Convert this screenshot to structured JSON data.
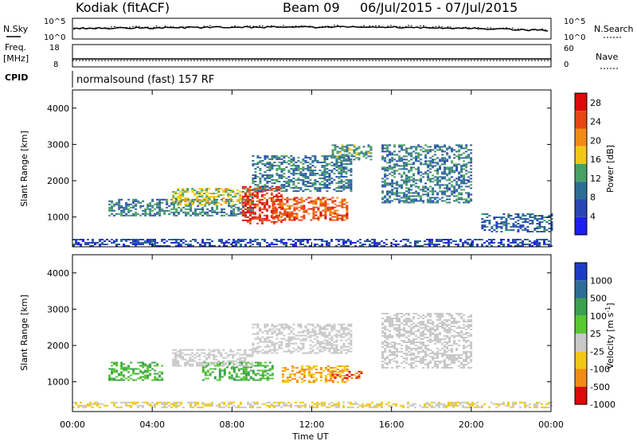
{
  "header": {
    "station": "Kodiak (fitACF)",
    "beam": "Beam 09",
    "date_range": "06/Jul/2015 - 07/Jul/2015"
  },
  "summary": {
    "left_labels": {
      "nsky": "N.Sky",
      "freq_top": "Freq.",
      "freq_unit": "[MHz]",
      "cpid": "CPID"
    },
    "right_labels": {
      "nsearch": "N.Search",
      "nave": "Nave"
    },
    "nsky_ticks": [
      "10^5",
      "10^0"
    ],
    "nsearch_ticks": [
      "10^5",
      "10^0"
    ],
    "freq_ticks": [
      "18",
      "8"
    ],
    "nave_ticks": [
      "60",
      "0"
    ],
    "cpid_text": "normalsound (fast) 157 RF"
  },
  "chart_data": [
    {
      "type": "heatmap",
      "panel": "power",
      "ylabel": "Slant Range [km]",
      "xlabel": "",
      "x_ticks": [
        "00:00",
        "04:00",
        "08:00",
        "12:00",
        "16:00",
        "20:00",
        "00:00"
      ],
      "y_ticks": [
        "1000",
        "2000",
        "3000",
        "4000"
      ],
      "x_range_hours": [
        0,
        24
      ],
      "y_range_km": [
        180,
        4500
      ],
      "colorbar": {
        "label": "Power [dB]",
        "ticks": [
          "4",
          "8",
          "12",
          "16",
          "20",
          "24",
          "28"
        ],
        "range": [
          0,
          30
        ],
        "colors": [
          "#1e1ef0",
          "#2a46b4",
          "#2e6e96",
          "#4aa064",
          "#f0c814",
          "#f08c14",
          "#e64614",
          "#dc0a0a"
        ]
      },
      "bands": [
        {
          "x": [
            1.8,
            9.0
          ],
          "y": [
            1050,
            1500
          ],
          "v": 10
        },
        {
          "x": [
            5.0,
            9.0
          ],
          "y": [
            1350,
            1800
          ],
          "v": 16
        },
        {
          "x": [
            8.5,
            10.5
          ],
          "y": [
            800,
            1850
          ],
          "v": 26
        },
        {
          "x": [
            10.0,
            13.8
          ],
          "y": [
            900,
            1550
          ],
          "v": 24
        },
        {
          "x": [
            9.0,
            14.0
          ],
          "y": [
            1700,
            2700
          ],
          "v": 10
        },
        {
          "x": [
            13.0,
            15.0
          ],
          "y": [
            2600,
            3000
          ],
          "v": 12
        },
        {
          "x": [
            15.5,
            20.0
          ],
          "y": [
            1400,
            3000
          ],
          "v": 10
        },
        {
          "x": [
            20.5,
            24.0
          ],
          "y": [
            600,
            1100
          ],
          "v": 8
        },
        {
          "x": [
            0.0,
            24.0
          ],
          "y": [
            200,
            400
          ],
          "v": 6
        }
      ]
    },
    {
      "type": "heatmap",
      "panel": "velocity",
      "ylabel": "Slant Range [km]",
      "xlabel": "Time UT",
      "x_ticks": [
        "00:00",
        "04:00",
        "08:00",
        "12:00",
        "16:00",
        "20:00",
        "00:00"
      ],
      "y_ticks": [
        "1000",
        "2000",
        "3000",
        "4000"
      ],
      "x_range_hours": [
        0,
        24
      ],
      "y_range_km": [
        180,
        4500
      ],
      "colorbar": {
        "label": "Velocity [m s^-1]",
        "ticks": [
          "1000",
          "500",
          "100",
          "25",
          "-25",
          "-100",
          "-500",
          "-1000"
        ],
        "colors": [
          "#1e3cc8",
          "#2e6e96",
          "#3ca050",
          "#5ac832",
          "#c8c8c8",
          "#f0c814",
          "#f08c14",
          "#dc0a0a"
        ]
      },
      "bands": [
        {
          "x": [
            1.8,
            4.5
          ],
          "y": [
            1050,
            1550
          ],
          "v": 100
        },
        {
          "x": [
            6.5,
            10.0
          ],
          "y": [
            1050,
            1550
          ],
          "v": 100
        },
        {
          "x": [
            5.0,
            9.0
          ],
          "y": [
            1450,
            1900
          ],
          "v": 0
        },
        {
          "x": [
            10.5,
            13.8
          ],
          "y": [
            1000,
            1450
          ],
          "v": -100
        },
        {
          "x": [
            13.0,
            14.5
          ],
          "y": [
            1100,
            1300
          ],
          "v": -500
        },
        {
          "x": [
            9.0,
            14.0
          ],
          "y": [
            1800,
            2600
          ],
          "v": 0
        },
        {
          "x": [
            15.5,
            20.0
          ],
          "y": [
            1400,
            2900
          ],
          "v": 0
        },
        {
          "x": [
            0.0,
            24.0
          ],
          "y": [
            300,
            450
          ],
          "v": -25
        }
      ]
    }
  ]
}
